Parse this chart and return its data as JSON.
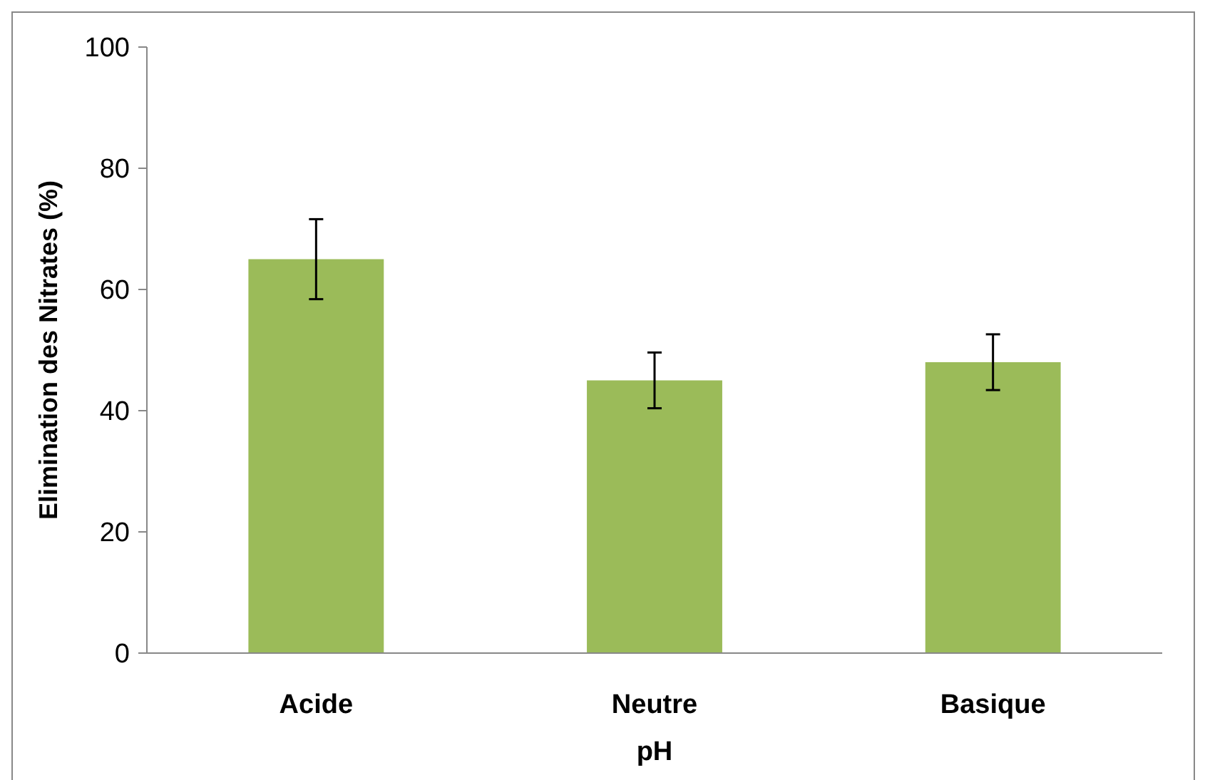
{
  "chart_data": {
    "type": "bar",
    "xlabel": "pH",
    "ylabel": "Elimination des  Nitrates (%)",
    "categories": [
      "Acide",
      "Neutre",
      "Basique"
    ],
    "values": [
      65,
      45,
      48
    ],
    "errors": [
      6.6,
      4.6,
      4.6
    ],
    "color": "#9bbb59",
    "ylim": [
      0,
      100
    ],
    "yticks": [
      0,
      20,
      40,
      60,
      80,
      100
    ],
    "grid": false
  }
}
